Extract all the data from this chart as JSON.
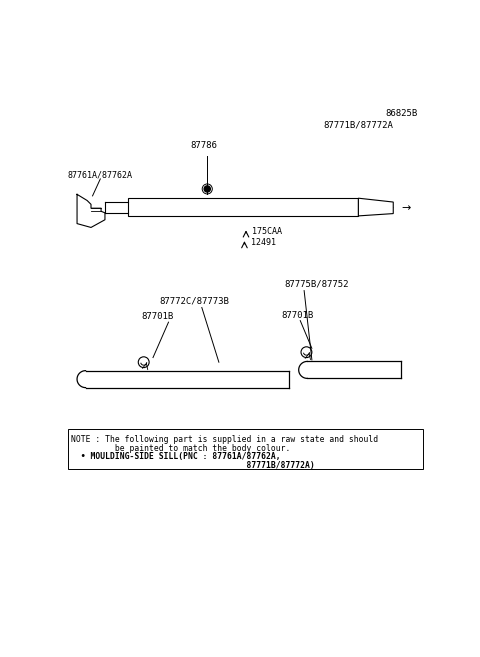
{
  "bg_color": "#ffffff",
  "diagram_title": "86825B",
  "top_label1": "87771B/87772A",
  "top_label2": "87786",
  "top_label3": "87761A/87762A",
  "top_label4": "175CAA",
  "top_label5": "12491",
  "mid_label1": "87775B/87752",
  "mid_label2": "87772C/87773B",
  "mid_label3": "87701B",
  "mid_label4": "87701B",
  "note_line1": "NOTE : The following part is supplied in a raw state and should",
  "note_line2": "         be painted to match the body colour.",
  "note_line3": "  • MOULDING-SIDE SILL(PNC : 87761A/87762A,",
  "note_line4": "                                    87771B/87772A)"
}
